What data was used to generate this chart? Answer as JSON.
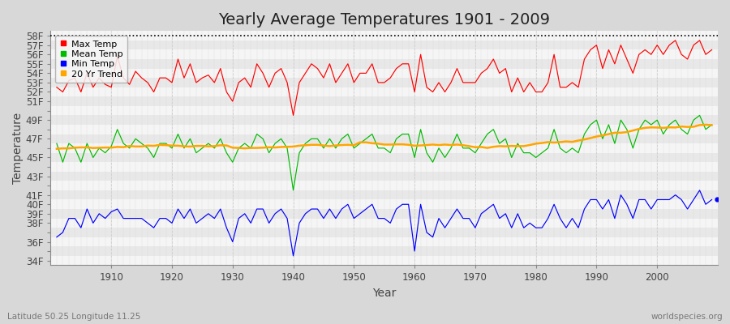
{
  "title": "Yearly Average Temperatures 1901 - 2009",
  "xlabel": "Year",
  "ylabel": "Temperature",
  "years": [
    1901,
    1902,
    1903,
    1904,
    1905,
    1906,
    1907,
    1908,
    1909,
    1910,
    1911,
    1912,
    1913,
    1914,
    1915,
    1916,
    1917,
    1918,
    1919,
    1920,
    1921,
    1922,
    1923,
    1924,
    1925,
    1926,
    1927,
    1928,
    1929,
    1930,
    1931,
    1932,
    1933,
    1934,
    1935,
    1936,
    1937,
    1938,
    1939,
    1940,
    1941,
    1942,
    1943,
    1944,
    1945,
    1946,
    1947,
    1948,
    1949,
    1950,
    1951,
    1952,
    1953,
    1954,
    1955,
    1956,
    1957,
    1958,
    1959,
    1960,
    1961,
    1962,
    1963,
    1964,
    1965,
    1966,
    1967,
    1968,
    1969,
    1970,
    1971,
    1972,
    1973,
    1974,
    1975,
    1976,
    1977,
    1978,
    1979,
    1980,
    1981,
    1982,
    1983,
    1984,
    1985,
    1986,
    1987,
    1988,
    1989,
    1990,
    1991,
    1992,
    1993,
    1994,
    1995,
    1996,
    1997,
    1998,
    1999,
    2000,
    2001,
    2002,
    2003,
    2004,
    2005,
    2006,
    2007,
    2008,
    2009
  ],
  "max_temp": [
    52.5,
    52.0,
    53.2,
    53.5,
    52.0,
    54.0,
    52.5,
    53.5,
    52.8,
    52.5,
    55.8,
    53.5,
    52.8,
    54.2,
    53.5,
    53.0,
    52.0,
    53.5,
    53.5,
    53.0,
    55.5,
    53.5,
    55.0,
    53.0,
    53.5,
    53.8,
    53.0,
    54.5,
    52.0,
    51.0,
    53.0,
    53.5,
    52.5,
    55.0,
    54.0,
    52.5,
    54.0,
    54.5,
    53.0,
    49.5,
    53.0,
    54.0,
    55.0,
    54.5,
    53.5,
    55.0,
    53.0,
    54.0,
    55.0,
    53.0,
    54.0,
    54.0,
    55.0,
    53.0,
    53.0,
    53.5,
    54.5,
    55.0,
    55.0,
    52.0,
    56.0,
    52.5,
    52.0,
    53.0,
    52.0,
    53.0,
    54.5,
    53.0,
    53.0,
    53.0,
    54.0,
    54.5,
    55.5,
    54.0,
    54.5,
    52.0,
    53.5,
    52.0,
    53.0,
    52.0,
    52.0,
    53.0,
    56.0,
    52.5,
    52.5,
    53.0,
    52.5,
    55.5,
    56.5,
    57.0,
    54.5,
    56.5,
    55.0,
    57.0,
    55.5,
    54.0,
    56.0,
    56.5,
    56.0,
    57.0,
    56.0,
    57.0,
    57.5,
    56.0,
    55.5,
    57.0,
    57.5,
    56.0,
    56.5
  ],
  "mean_temp": [
    46.5,
    44.5,
    46.5,
    46.0,
    44.5,
    46.5,
    45.0,
    46.0,
    45.5,
    46.2,
    48.0,
    46.5,
    46.0,
    47.0,
    46.5,
    46.0,
    45.0,
    46.5,
    46.5,
    46.0,
    47.5,
    46.0,
    47.0,
    45.5,
    46.0,
    46.5,
    46.0,
    47.0,
    45.5,
    44.5,
    46.0,
    46.5,
    46.0,
    47.5,
    47.0,
    45.5,
    46.5,
    47.0,
    46.0,
    41.5,
    45.5,
    46.5,
    47.0,
    47.0,
    46.0,
    47.0,
    46.0,
    47.0,
    47.5,
    46.0,
    46.5,
    47.0,
    47.5,
    46.0,
    46.0,
    45.5,
    47.0,
    47.5,
    47.5,
    45.0,
    48.0,
    45.5,
    44.5,
    46.0,
    45.0,
    46.0,
    47.5,
    46.0,
    46.0,
    45.5,
    46.5,
    47.5,
    48.0,
    46.5,
    47.0,
    45.0,
    46.5,
    45.5,
    45.5,
    45.0,
    45.5,
    46.0,
    48.0,
    46.0,
    45.5,
    46.0,
    45.5,
    47.5,
    48.5,
    49.0,
    47.0,
    48.5,
    46.5,
    49.0,
    48.0,
    46.0,
    48.0,
    49.0,
    48.5,
    49.0,
    47.5,
    48.5,
    49.0,
    48.0,
    47.5,
    49.0,
    49.5,
    48.0,
    48.5
  ],
  "min_temp": [
    36.5,
    37.0,
    38.5,
    38.5,
    37.5,
    39.5,
    38.0,
    39.0,
    38.5,
    39.2,
    39.5,
    38.5,
    38.5,
    38.5,
    38.5,
    38.0,
    37.5,
    38.5,
    38.5,
    38.0,
    39.5,
    38.5,
    39.5,
    38.0,
    38.5,
    39.0,
    38.5,
    39.5,
    37.5,
    36.0,
    38.5,
    39.0,
    38.0,
    39.5,
    39.5,
    38.0,
    39.0,
    39.5,
    38.5,
    34.5,
    38.0,
    39.0,
    39.5,
    39.5,
    38.5,
    39.5,
    38.5,
    39.5,
    40.0,
    38.5,
    39.0,
    39.5,
    40.0,
    38.5,
    38.5,
    38.0,
    39.5,
    40.0,
    40.0,
    35.0,
    40.0,
    37.0,
    36.5,
    38.5,
    37.5,
    38.5,
    39.5,
    38.5,
    38.5,
    37.5,
    39.0,
    39.5,
    40.0,
    38.5,
    39.0,
    37.5,
    39.0,
    37.5,
    38.0,
    37.5,
    37.5,
    38.5,
    40.0,
    38.5,
    37.5,
    38.5,
    37.5,
    39.5,
    40.5,
    40.5,
    39.5,
    40.5,
    38.5,
    41.0,
    40.0,
    38.5,
    40.5,
    40.5,
    39.5,
    40.5,
    40.5,
    40.5,
    41.0,
    40.5,
    39.5,
    40.5,
    41.5,
    40.0,
    40.5
  ],
  "max_color": "#ff0000",
  "mean_color": "#00bb00",
  "min_color": "#0000ff",
  "trend_color": "#ffa500",
  "bg_color": "#d8d8d8",
  "plot_bg_light": "#f5f5f5",
  "plot_bg_dark": "#e8e8e8",
  "ytick_labels": [
    "34F",
    "",
    "36F",
    "",
    "38F",
    "39F",
    "40F",
    "41F",
    "",
    "43F",
    "",
    "45F",
    "",
    "47F",
    "",
    "49F",
    "",
    "51F",
    "",
    "53F",
    "",
    "55F",
    "",
    "57F",
    "58F"
  ],
  "ytick_vals": [
    34,
    35,
    36,
    37,
    38,
    39,
    40,
    41,
    42,
    43,
    44,
    45,
    46,
    47,
    48,
    49,
    50,
    51,
    52,
    53,
    54,
    55,
    56,
    57,
    58
  ],
  "ylim": [
    33.5,
    58.5
  ],
  "xlim": [
    1900,
    2010
  ],
  "dotted_line_y": 58.0,
  "last_point_x": 2009.8,
  "last_point_y_min": 40.5,
  "title_fontsize": 14,
  "axis_label_fontsize": 10,
  "tick_fontsize": 8.5
}
